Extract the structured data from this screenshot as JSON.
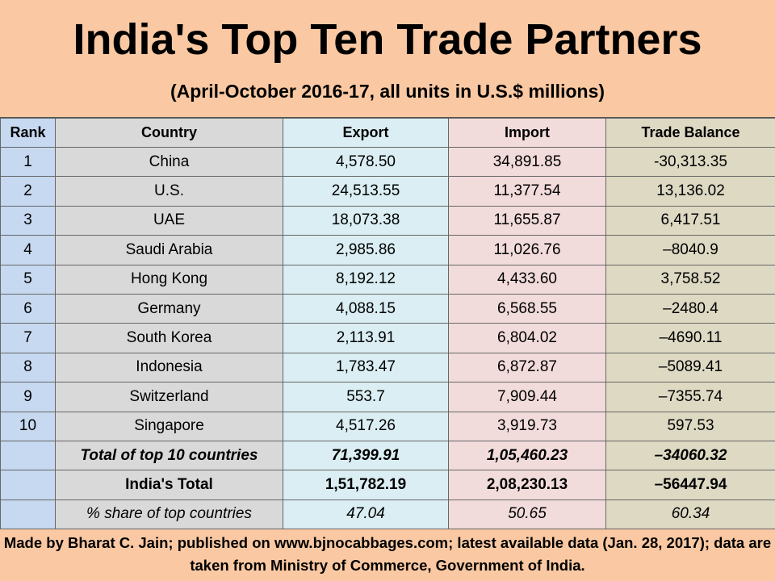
{
  "header": {
    "title": "India's Top Ten Trade Partners",
    "subtitle": "(April-October 2016-17, all units in U.S.$ millions)"
  },
  "table": {
    "columns": [
      "Rank",
      "Country",
      "Export",
      "Import",
      "Trade Balance"
    ],
    "rows": [
      [
        "1",
        "China",
        "4,578.50",
        "34,891.85",
        "-30,313.35"
      ],
      [
        "2",
        "U.S.",
        "24,513.55",
        "11,377.54",
        "13,136.02"
      ],
      [
        "3",
        "UAE",
        "18,073.38",
        "11,655.87",
        "6,417.51"
      ],
      [
        "4",
        "Saudi Arabia",
        "2,985.86",
        "11,026.76",
        "–8040.9"
      ],
      [
        "5",
        "Hong Kong",
        "8,192.12",
        "4,433.60",
        "3,758.52"
      ],
      [
        "6",
        "Germany",
        "4,088.15",
        "6,568.55",
        "–2480.4"
      ],
      [
        "7",
        "South Korea",
        "2,113.91",
        "6,804.02",
        "–4690.11"
      ],
      [
        "8",
        "Indonesia",
        "1,783.47",
        "6,872.87",
        "–5089.41"
      ],
      [
        "9",
        "Switzerland",
        "553.7",
        "7,909.44",
        "–7355.74"
      ],
      [
        "10",
        "Singapore",
        "4,517.26",
        "3,919.73",
        "597.53"
      ],
      [
        null,
        "Total of top 10 countries",
        "71,399.91",
        "1,05,460.23",
        "–34060.32"
      ],
      [
        null,
        "India's Total",
        "1,51,782.19",
        "2,08,230.13",
        "–56447.94"
      ],
      [
        null,
        "%  share of top countries",
        "47.04",
        "50.65",
        "60.34"
      ]
    ]
  },
  "footer": {
    "note": "Made by Bharat C. Jain; published on www.bjnocabbages.com; latest available data (Jan. 28, 2017); data are taken from Ministry of Commerce, Government of India."
  }
}
